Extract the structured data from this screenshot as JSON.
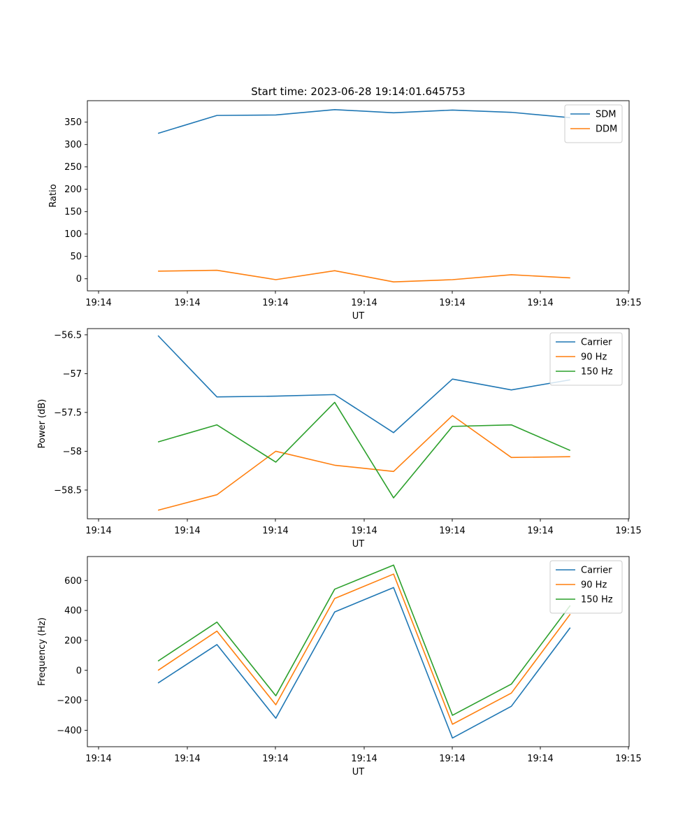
{
  "figure": {
    "title": "Start time: 2023-06-28 19:14:01.645753"
  },
  "colors": {
    "blue": "#1f77b4",
    "orange": "#ff7f0e",
    "green": "#2ca02c"
  },
  "chart_data": [
    {
      "type": "line",
      "title": "Start time: 2023-06-28 19:14:01.645753",
      "xlabel": "UT",
      "ylabel": "Ratio",
      "xtick_labels": [
        "19:14",
        "19:14",
        "19:14",
        "19:14",
        "19:14",
        "19:14",
        "19:14",
        "19:15"
      ],
      "x": [
        1,
        2,
        3,
        4,
        5,
        6,
        7,
        8
      ],
      "xlim": [
        -0.2,
        9.0
      ],
      "ylim": [
        -27,
        398
      ],
      "yticks": [
        0,
        50,
        100,
        150,
        200,
        250,
        300,
        350
      ],
      "legend": "top-right",
      "grid": false,
      "series": [
        {
          "name": "SDM",
          "color": "#1f77b4",
          "values": [
            325,
            365,
            366,
            378,
            371,
            377,
            372,
            360
          ]
        },
        {
          "name": "DDM",
          "color": "#ff7f0e",
          "values": [
            17,
            19,
            -2,
            18,
            -7,
            -2,
            9,
            2
          ]
        }
      ]
    },
    {
      "type": "line",
      "xlabel": "UT",
      "ylabel": "Power (dB)",
      "xtick_labels": [
        "19:14",
        "19:14",
        "19:14",
        "19:14",
        "19:14",
        "19:14",
        "19:14",
        "19:15"
      ],
      "x": [
        1,
        2,
        3,
        4,
        5,
        6,
        7,
        8
      ],
      "xlim": [
        -0.2,
        9.0
      ],
      "ylim": [
        -58.87,
        -56.42
      ],
      "yticks": [
        -58.5,
        -58.0,
        -57.5,
        -57.0,
        -56.5
      ],
      "legend": "top-right",
      "grid": false,
      "series": [
        {
          "name": "Carrier",
          "color": "#1f77b4",
          "values": [
            -56.51,
            -57.3,
            -57.29,
            -57.27,
            -57.76,
            -57.07,
            -57.21,
            -57.08
          ]
        },
        {
          "name": "90 Hz",
          "color": "#ff7f0e",
          "values": [
            -58.76,
            -58.56,
            -58.0,
            -58.18,
            -58.26,
            -57.54,
            -58.08,
            -58.07
          ]
        },
        {
          "name": "150 Hz",
          "color": "#2ca02c",
          "values": [
            -57.88,
            -57.66,
            -58.14,
            -57.37,
            -58.6,
            -57.68,
            -57.66,
            -57.99
          ]
        }
      ]
    },
    {
      "type": "line",
      "xlabel": "UT",
      "ylabel": "Frequency (Hz)",
      "xtick_labels": [
        "19:14",
        "19:14",
        "19:14",
        "19:14",
        "19:14",
        "19:14",
        "19:14",
        "19:15"
      ],
      "x": [
        1,
        2,
        3,
        4,
        5,
        6,
        7,
        8
      ],
      "xlim": [
        -0.2,
        9.0
      ],
      "ylim": [
        -510,
        760
      ],
      "yticks": [
        -400,
        -200,
        0,
        200,
        400,
        600
      ],
      "legend": "top-right",
      "grid": false,
      "series": [
        {
          "name": "Carrier",
          "color": "#1f77b4",
          "values": [
            -85,
            172,
            -320,
            390,
            553,
            -452,
            -240,
            285
          ]
        },
        {
          "name": "90 Hz",
          "color": "#ff7f0e",
          "values": [
            0,
            262,
            -230,
            480,
            643,
            -360,
            -152,
            375
          ]
        },
        {
          "name": "150 Hz",
          "color": "#2ca02c",
          "values": [
            62,
            322,
            -170,
            542,
            703,
            -300,
            -92,
            433
          ]
        }
      ]
    }
  ]
}
